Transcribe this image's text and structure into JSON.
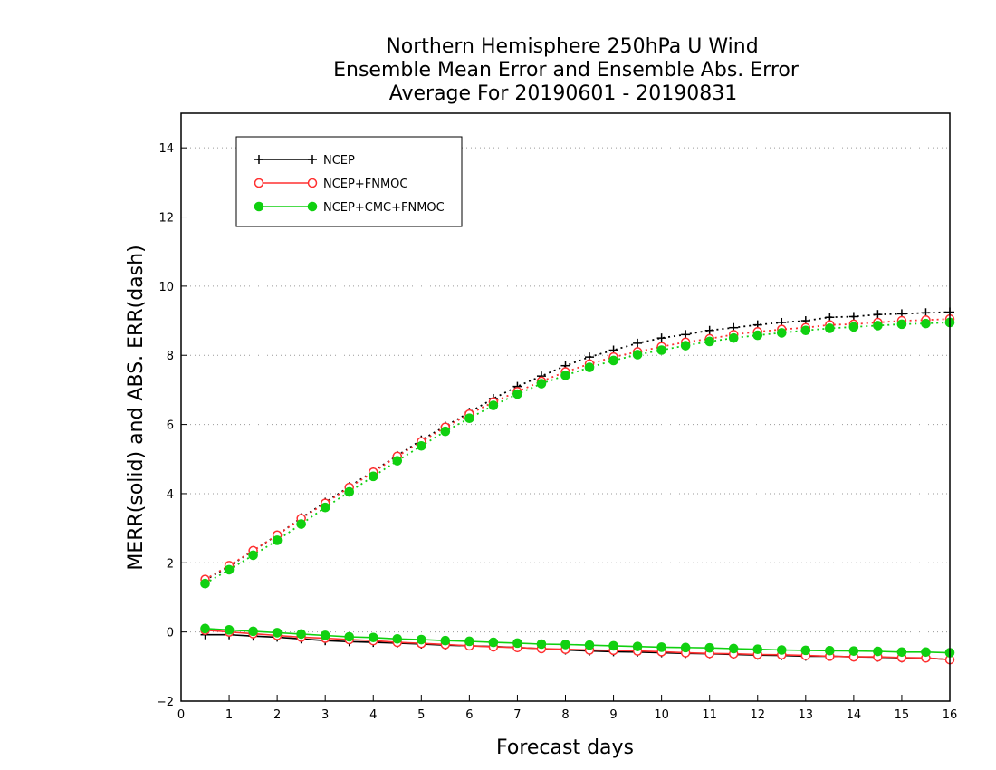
{
  "chart_data": {
    "type": "line",
    "title": [
      "Northern Hemisphere 250hPa U Wind",
      "Ensemble Mean Error and Ensemble Abs. Error",
      "Average For 20190601 - 20190831"
    ],
    "xlabel": "Forecast days",
    "ylabel": "MERR(solid) and ABS. ERR(dash)",
    "xlim": [
      0,
      16
    ],
    "ylim": [
      -2,
      15
    ],
    "x_ticks": [
      0,
      1,
      2,
      3,
      4,
      5,
      6,
      7,
      8,
      9,
      10,
      11,
      12,
      13,
      14,
      15,
      16
    ],
    "y_ticks": [
      -2,
      0,
      2,
      4,
      6,
      8,
      10,
      12,
      14
    ],
    "y_grid": true,
    "legend_position": "top-left",
    "x": [
      0.5,
      1,
      1.5,
      2,
      2.5,
      3,
      3.5,
      4,
      4.5,
      5,
      5.5,
      6,
      6.5,
      7,
      7.5,
      8,
      8.5,
      9,
      9.5,
      10,
      10.5,
      11,
      11.5,
      12,
      12.5,
      13,
      13.5,
      14,
      14.5,
      15,
      15.5,
      16
    ],
    "series": [
      {
        "name": "NCEP",
        "color": "#000000",
        "marker": "plus",
        "mean_error": [
          -0.08,
          -0.08,
          -0.12,
          -0.15,
          -0.2,
          -0.25,
          -0.28,
          -0.3,
          -0.32,
          -0.35,
          -0.38,
          -0.4,
          -0.42,
          -0.45,
          -0.48,
          -0.52,
          -0.55,
          -0.57,
          -0.58,
          -0.6,
          -0.62,
          -0.63,
          -0.65,
          -0.67,
          -0.68,
          -0.7,
          -0.7,
          -0.72,
          -0.73,
          -0.75,
          -0.75,
          -0.8
        ],
        "abs_error": [
          1.5,
          1.9,
          2.35,
          2.8,
          3.3,
          3.75,
          4.2,
          4.65,
          5.1,
          5.55,
          5.95,
          6.35,
          6.75,
          7.1,
          7.4,
          7.7,
          7.95,
          8.15,
          8.35,
          8.5,
          8.6,
          8.72,
          8.8,
          8.88,
          8.95,
          9.0,
          9.1,
          9.12,
          9.18,
          9.2,
          9.23,
          9.25
        ]
      },
      {
        "name": "NCEP+FNMOC",
        "color": "#ff3030",
        "marker": "open-circle",
        "mean_error": [
          0.05,
          0.0,
          -0.05,
          -0.1,
          -0.15,
          -0.18,
          -0.22,
          -0.25,
          -0.3,
          -0.33,
          -0.36,
          -0.4,
          -0.43,
          -0.45,
          -0.48,
          -0.5,
          -0.52,
          -0.53,
          -0.55,
          -0.57,
          -0.6,
          -0.62,
          -0.63,
          -0.65,
          -0.66,
          -0.68,
          -0.7,
          -0.72,
          -0.72,
          -0.74,
          -0.75,
          -0.8
        ],
        "abs_error": [
          1.52,
          1.92,
          2.35,
          2.8,
          3.28,
          3.72,
          4.18,
          4.62,
          5.08,
          5.5,
          5.92,
          6.3,
          6.65,
          6.95,
          7.25,
          7.52,
          7.75,
          7.95,
          8.1,
          8.25,
          8.38,
          8.48,
          8.6,
          8.68,
          8.75,
          8.8,
          8.88,
          8.9,
          8.95,
          9.0,
          9.02,
          9.05
        ]
      },
      {
        "name": "NCEP+CMC+FNMOC",
        "color": "#10d010",
        "marker": "filled-circle",
        "mean_error": [
          0.1,
          0.06,
          0.02,
          -0.02,
          -0.06,
          -0.1,
          -0.14,
          -0.16,
          -0.2,
          -0.22,
          -0.25,
          -0.27,
          -0.3,
          -0.32,
          -0.35,
          -0.36,
          -0.38,
          -0.4,
          -0.42,
          -0.44,
          -0.45,
          -0.46,
          -0.48,
          -0.5,
          -0.52,
          -0.53,
          -0.54,
          -0.55,
          -0.56,
          -0.58,
          -0.58,
          -0.6
        ],
        "abs_error": [
          1.4,
          1.8,
          2.22,
          2.65,
          3.12,
          3.6,
          4.05,
          4.5,
          4.95,
          5.38,
          5.8,
          6.18,
          6.55,
          6.88,
          7.18,
          7.42,
          7.65,
          7.85,
          8.02,
          8.15,
          8.28,
          8.4,
          8.5,
          8.58,
          8.65,
          8.72,
          8.78,
          8.82,
          8.86,
          8.9,
          8.92,
          8.95
        ]
      }
    ]
  }
}
